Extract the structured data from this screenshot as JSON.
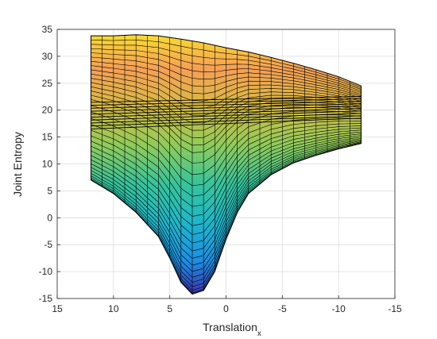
{
  "chart_data": {
    "type": "surface",
    "xlabel": "Translation",
    "xlabel_subscript": "x",
    "ylabel": "Joint Entropy",
    "xlim": [
      15,
      -15
    ],
    "ylim": [
      -15,
      35
    ],
    "x_direction": "reversed",
    "xticks": [
      15,
      10,
      5,
      0,
      -5,
      -10,
      -15
    ],
    "yticks": [
      35,
      30,
      25,
      20,
      15,
      10,
      5,
      0,
      -5,
      -10,
      -15
    ],
    "grid": true,
    "view": "side projection of 3D surface",
    "x_range": [
      12,
      -12
    ],
    "upper_envelope": {
      "x": [
        12,
        10,
        8,
        6,
        4,
        2,
        0,
        -2,
        -4,
        -6,
        -8,
        -10,
        -12
      ],
      "y": [
        33.8,
        33.8,
        34.0,
        33.8,
        33.2,
        32.5,
        31.6,
        30.8,
        29.8,
        28.7,
        27.5,
        26.2,
        24.5
      ]
    },
    "lower_envelope": {
      "x": [
        12,
        10,
        8,
        6,
        5,
        4,
        3,
        2,
        1,
        0,
        -1,
        -2,
        -4,
        -6,
        -8,
        -10,
        -12
      ],
      "y": [
        7.0,
        4.5,
        1.0,
        -3.5,
        -7.5,
        -12.0,
        -14.2,
        -13.5,
        -10.0,
        -4.0,
        1.0,
        4.5,
        8.0,
        10.2,
        11.6,
        12.8,
        13.8
      ]
    },
    "colormap": [
      "#3e26a8",
      "#1d8fe3",
      "#1fb6c9",
      "#37c49a",
      "#8ecc5a",
      "#d7bb44",
      "#f5a055",
      "#f9e428"
    ]
  }
}
